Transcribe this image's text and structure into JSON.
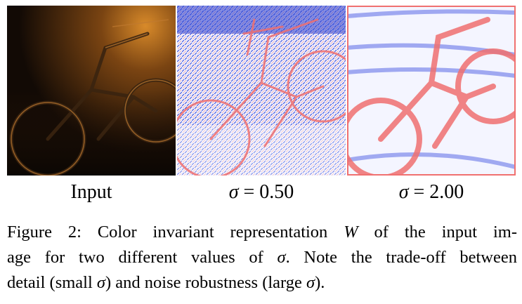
{
  "figure": {
    "panels": [
      {
        "id": "input",
        "label": "Input"
      },
      {
        "id": "sigma_050",
        "label_symbol": "σ",
        "label_eq": " = 0.50"
      },
      {
        "id": "sigma_200",
        "label_symbol": "σ",
        "label_eq": " = 2.00"
      }
    ],
    "caption": {
      "line1_a": "Figure 2: Color invariant representation ",
      "line1_W": "W",
      "line1_b": " of the input im-",
      "line2_a": "age for two different values of ",
      "line2_sigma": "σ",
      "line2_b": ". Note the trade-off between",
      "line3_a": "detail (small ",
      "line3_sigma1": "σ",
      "line3_b": ") and noise robustness (large ",
      "line3_sigma2": "σ",
      "line3_c": ")."
    }
  },
  "colors": {
    "positive": "#f07070",
    "negative": "#4a5ae0",
    "neutral": "#ffffff",
    "night_sky": "#8a4a10",
    "night_dark": "#140c06"
  }
}
